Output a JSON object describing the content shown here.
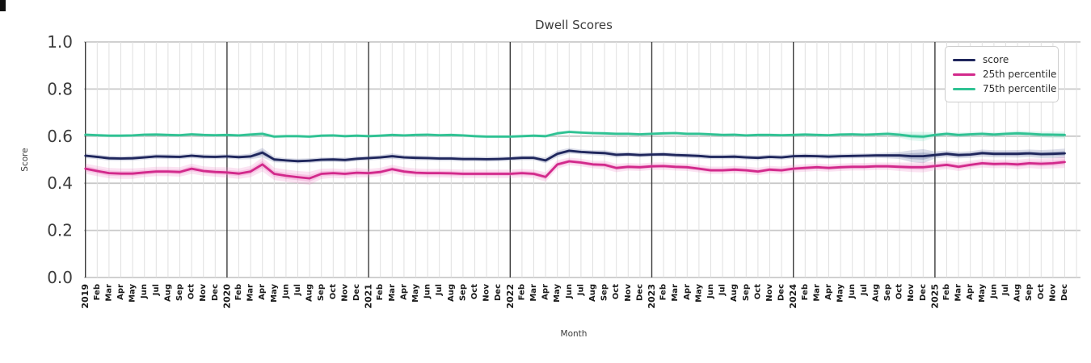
{
  "title": "Dwell Scores",
  "axes": {
    "x_label": "Month",
    "y_label": "Score",
    "y_ticks": [
      "0.0",
      "0.2",
      "0.4",
      "0.6",
      "0.8",
      "1.0"
    ],
    "y_tick_values": [
      0.0,
      0.2,
      0.4,
      0.6,
      0.8,
      1.0
    ]
  },
  "legend": [
    {
      "label": "score",
      "color": "#1f265c"
    },
    {
      "label": "25th percentile",
      "color": "#d2298b"
    },
    {
      "label": "75th percentile",
      "color": "#2fc293"
    }
  ],
  "chart_data": {
    "type": "line",
    "title": "Dwell Scores",
    "xlabel": "Month",
    "ylabel": "Score",
    "ylim": [
      0.0,
      1.0
    ],
    "grid": true,
    "legend_position": "upper right",
    "x_labels": [
      "2019",
      "Feb",
      "Mar",
      "Apr",
      "May",
      "Jun",
      "Jul",
      "Aug",
      "Sep",
      "Oct",
      "Nov",
      "Dec",
      "2020",
      "Feb",
      "Mar",
      "Apr",
      "May",
      "Jun",
      "Jul",
      "Aug",
      "Sep",
      "Oct",
      "Nov",
      "Dec",
      "2021",
      "Feb",
      "Mar",
      "Apr",
      "May",
      "Jun",
      "Jul",
      "Aug",
      "Sep",
      "Oct",
      "Nov",
      "Dec",
      "2022",
      "Feb",
      "Mar",
      "Apr",
      "May",
      "Jun",
      "Jul",
      "Aug",
      "Sep",
      "Oct",
      "Nov",
      "Dec",
      "2023",
      "Feb",
      "Mar",
      "Apr",
      "May",
      "Jun",
      "Jul",
      "Aug",
      "Sep",
      "Oct",
      "Nov",
      "Dec",
      "2024",
      "Feb",
      "Mar",
      "Apr",
      "May",
      "Jun",
      "Jul",
      "Aug",
      "Sep",
      "Oct",
      "Nov",
      "Dec",
      "2025",
      "Feb",
      "Mar",
      "Apr",
      "May",
      "Jun",
      "Jul",
      "Aug",
      "Sep",
      "Oct",
      "Nov",
      "Dec"
    ],
    "year_ticks": [
      "2019",
      "2020",
      "2021",
      "2022",
      "2023",
      "2024",
      "2025"
    ],
    "series": [
      {
        "name": "score",
        "color": "#1f265c",
        "band_color": "#5a6699",
        "values": [
          0.517,
          0.512,
          0.506,
          0.505,
          0.506,
          0.51,
          0.514,
          0.513,
          0.512,
          0.517,
          0.513,
          0.512,
          0.514,
          0.511,
          0.514,
          0.53,
          0.501,
          0.497,
          0.494,
          0.496,
          0.5,
          0.501,
          0.499,
          0.504,
          0.507,
          0.51,
          0.515,
          0.51,
          0.508,
          0.507,
          0.505,
          0.505,
          0.503,
          0.503,
          0.502,
          0.503,
          0.505,
          0.508,
          0.508,
          0.497,
          0.525,
          0.538,
          0.533,
          0.53,
          0.528,
          0.521,
          0.523,
          0.52,
          0.522,
          0.523,
          0.52,
          0.518,
          0.516,
          0.512,
          0.512,
          0.513,
          0.51,
          0.508,
          0.512,
          0.51,
          0.515,
          0.516,
          0.515,
          0.513,
          0.515,
          0.516,
          0.517,
          0.518,
          0.518,
          0.518,
          0.515,
          0.515,
          0.52,
          0.525,
          0.52,
          0.522,
          0.528,
          0.525,
          0.525,
          0.525,
          0.527,
          0.524,
          0.525,
          0.527
        ],
        "band": [
          0.01,
          0.01,
          0.01,
          0.01,
          0.01,
          0.01,
          0.01,
          0.01,
          0.01,
          0.01,
          0.01,
          0.01,
          0.01,
          0.01,
          0.012,
          0.02,
          0.012,
          0.01,
          0.01,
          0.01,
          0.01,
          0.01,
          0.01,
          0.01,
          0.01,
          0.01,
          0.012,
          0.01,
          0.01,
          0.01,
          0.01,
          0.01,
          0.01,
          0.01,
          0.01,
          0.01,
          0.01,
          0.01,
          0.01,
          0.012,
          0.014,
          0.012,
          0.01,
          0.01,
          0.012,
          0.012,
          0.01,
          0.01,
          0.01,
          0.01,
          0.01,
          0.01,
          0.01,
          0.01,
          0.01,
          0.01,
          0.01,
          0.01,
          0.01,
          0.01,
          0.01,
          0.01,
          0.01,
          0.01,
          0.01,
          0.01,
          0.01,
          0.01,
          0.012,
          0.015,
          0.025,
          0.03,
          0.015,
          0.014,
          0.014,
          0.014,
          0.015,
          0.015,
          0.015,
          0.016,
          0.016,
          0.017,
          0.018,
          0.02
        ]
      },
      {
        "name": "25th percentile",
        "color": "#d2298b",
        "band_color": "#ee7fc4",
        "values": [
          0.462,
          0.452,
          0.443,
          0.441,
          0.441,
          0.446,
          0.45,
          0.45,
          0.448,
          0.462,
          0.452,
          0.448,
          0.446,
          0.441,
          0.45,
          0.48,
          0.44,
          0.432,
          0.426,
          0.421,
          0.44,
          0.443,
          0.44,
          0.445,
          0.443,
          0.448,
          0.46,
          0.45,
          0.445,
          0.443,
          0.443,
          0.442,
          0.44,
          0.44,
          0.44,
          0.44,
          0.44,
          0.443,
          0.44,
          0.427,
          0.48,
          0.493,
          0.488,
          0.48,
          0.478,
          0.465,
          0.47,
          0.468,
          0.472,
          0.473,
          0.47,
          0.468,
          0.462,
          0.455,
          0.455,
          0.458,
          0.455,
          0.45,
          0.458,
          0.455,
          0.462,
          0.465,
          0.468,
          0.465,
          0.468,
          0.47,
          0.47,
          0.472,
          0.472,
          0.47,
          0.468,
          0.468,
          0.473,
          0.478,
          0.47,
          0.478,
          0.485,
          0.482,
          0.483,
          0.48,
          0.485,
          0.483,
          0.485,
          0.49
        ],
        "band": [
          0.022,
          0.022,
          0.022,
          0.022,
          0.022,
          0.02,
          0.02,
          0.02,
          0.02,
          0.022,
          0.02,
          0.02,
          0.022,
          0.022,
          0.024,
          0.03,
          0.026,
          0.026,
          0.026,
          0.028,
          0.022,
          0.02,
          0.02,
          0.02,
          0.018,
          0.018,
          0.018,
          0.018,
          0.018,
          0.018,
          0.018,
          0.018,
          0.018,
          0.018,
          0.018,
          0.018,
          0.018,
          0.018,
          0.018,
          0.02,
          0.018,
          0.016,
          0.016,
          0.016,
          0.018,
          0.018,
          0.016,
          0.016,
          0.016,
          0.016,
          0.016,
          0.016,
          0.016,
          0.016,
          0.016,
          0.016,
          0.016,
          0.016,
          0.016,
          0.016,
          0.016,
          0.016,
          0.016,
          0.016,
          0.016,
          0.016,
          0.016,
          0.016,
          0.016,
          0.018,
          0.02,
          0.022,
          0.018,
          0.018,
          0.018,
          0.018,
          0.018,
          0.018,
          0.018,
          0.02,
          0.02,
          0.022,
          0.022,
          0.025
        ]
      },
      {
        "name": "75th percentile",
        "color": "#2fc293",
        "band_color": "#79dcc0",
        "values": [
          0.606,
          0.604,
          0.602,
          0.602,
          0.603,
          0.606,
          0.607,
          0.605,
          0.604,
          0.608,
          0.605,
          0.604,
          0.605,
          0.603,
          0.607,
          0.61,
          0.598,
          0.6,
          0.6,
          0.598,
          0.602,
          0.603,
          0.6,
          0.602,
          0.6,
          0.602,
          0.605,
          0.603,
          0.605,
          0.606,
          0.604,
          0.605,
          0.603,
          0.6,
          0.598,
          0.598,
          0.598,
          0.6,
          0.602,
          0.6,
          0.612,
          0.618,
          0.615,
          0.613,
          0.612,
          0.61,
          0.61,
          0.608,
          0.61,
          0.612,
          0.613,
          0.61,
          0.61,
          0.608,
          0.605,
          0.606,
          0.603,
          0.605,
          0.605,
          0.604,
          0.605,
          0.607,
          0.605,
          0.604,
          0.607,
          0.608,
          0.606,
          0.608,
          0.61,
          0.606,
          0.6,
          0.598,
          0.605,
          0.61,
          0.605,
          0.608,
          0.61,
          0.607,
          0.61,
          0.612,
          0.61,
          0.607,
          0.606,
          0.605
        ],
        "band": [
          0.007,
          0.007,
          0.007,
          0.007,
          0.007,
          0.007,
          0.007,
          0.007,
          0.007,
          0.007,
          0.007,
          0.007,
          0.007,
          0.007,
          0.008,
          0.01,
          0.008,
          0.007,
          0.007,
          0.007,
          0.007,
          0.007,
          0.007,
          0.007,
          0.007,
          0.007,
          0.007,
          0.007,
          0.007,
          0.007,
          0.007,
          0.007,
          0.007,
          0.007,
          0.007,
          0.007,
          0.007,
          0.007,
          0.007,
          0.008,
          0.008,
          0.007,
          0.007,
          0.007,
          0.007,
          0.007,
          0.007,
          0.007,
          0.007,
          0.007,
          0.007,
          0.007,
          0.007,
          0.007,
          0.007,
          0.007,
          0.007,
          0.007,
          0.007,
          0.007,
          0.007,
          0.007,
          0.007,
          0.007,
          0.007,
          0.007,
          0.007,
          0.008,
          0.01,
          0.012,
          0.018,
          0.02,
          0.01,
          0.01,
          0.01,
          0.01,
          0.01,
          0.01,
          0.01,
          0.012,
          0.012,
          0.012,
          0.014,
          0.015
        ]
      }
    ]
  },
  "style": {
    "grid_minor_color": "#e0e0e0",
    "grid_major_color": "#c9c9c9",
    "year_line_color": "#3b3b3b",
    "tick_label_color": "#3d3d3d",
    "x_label_color": "#1a1a1a"
  }
}
